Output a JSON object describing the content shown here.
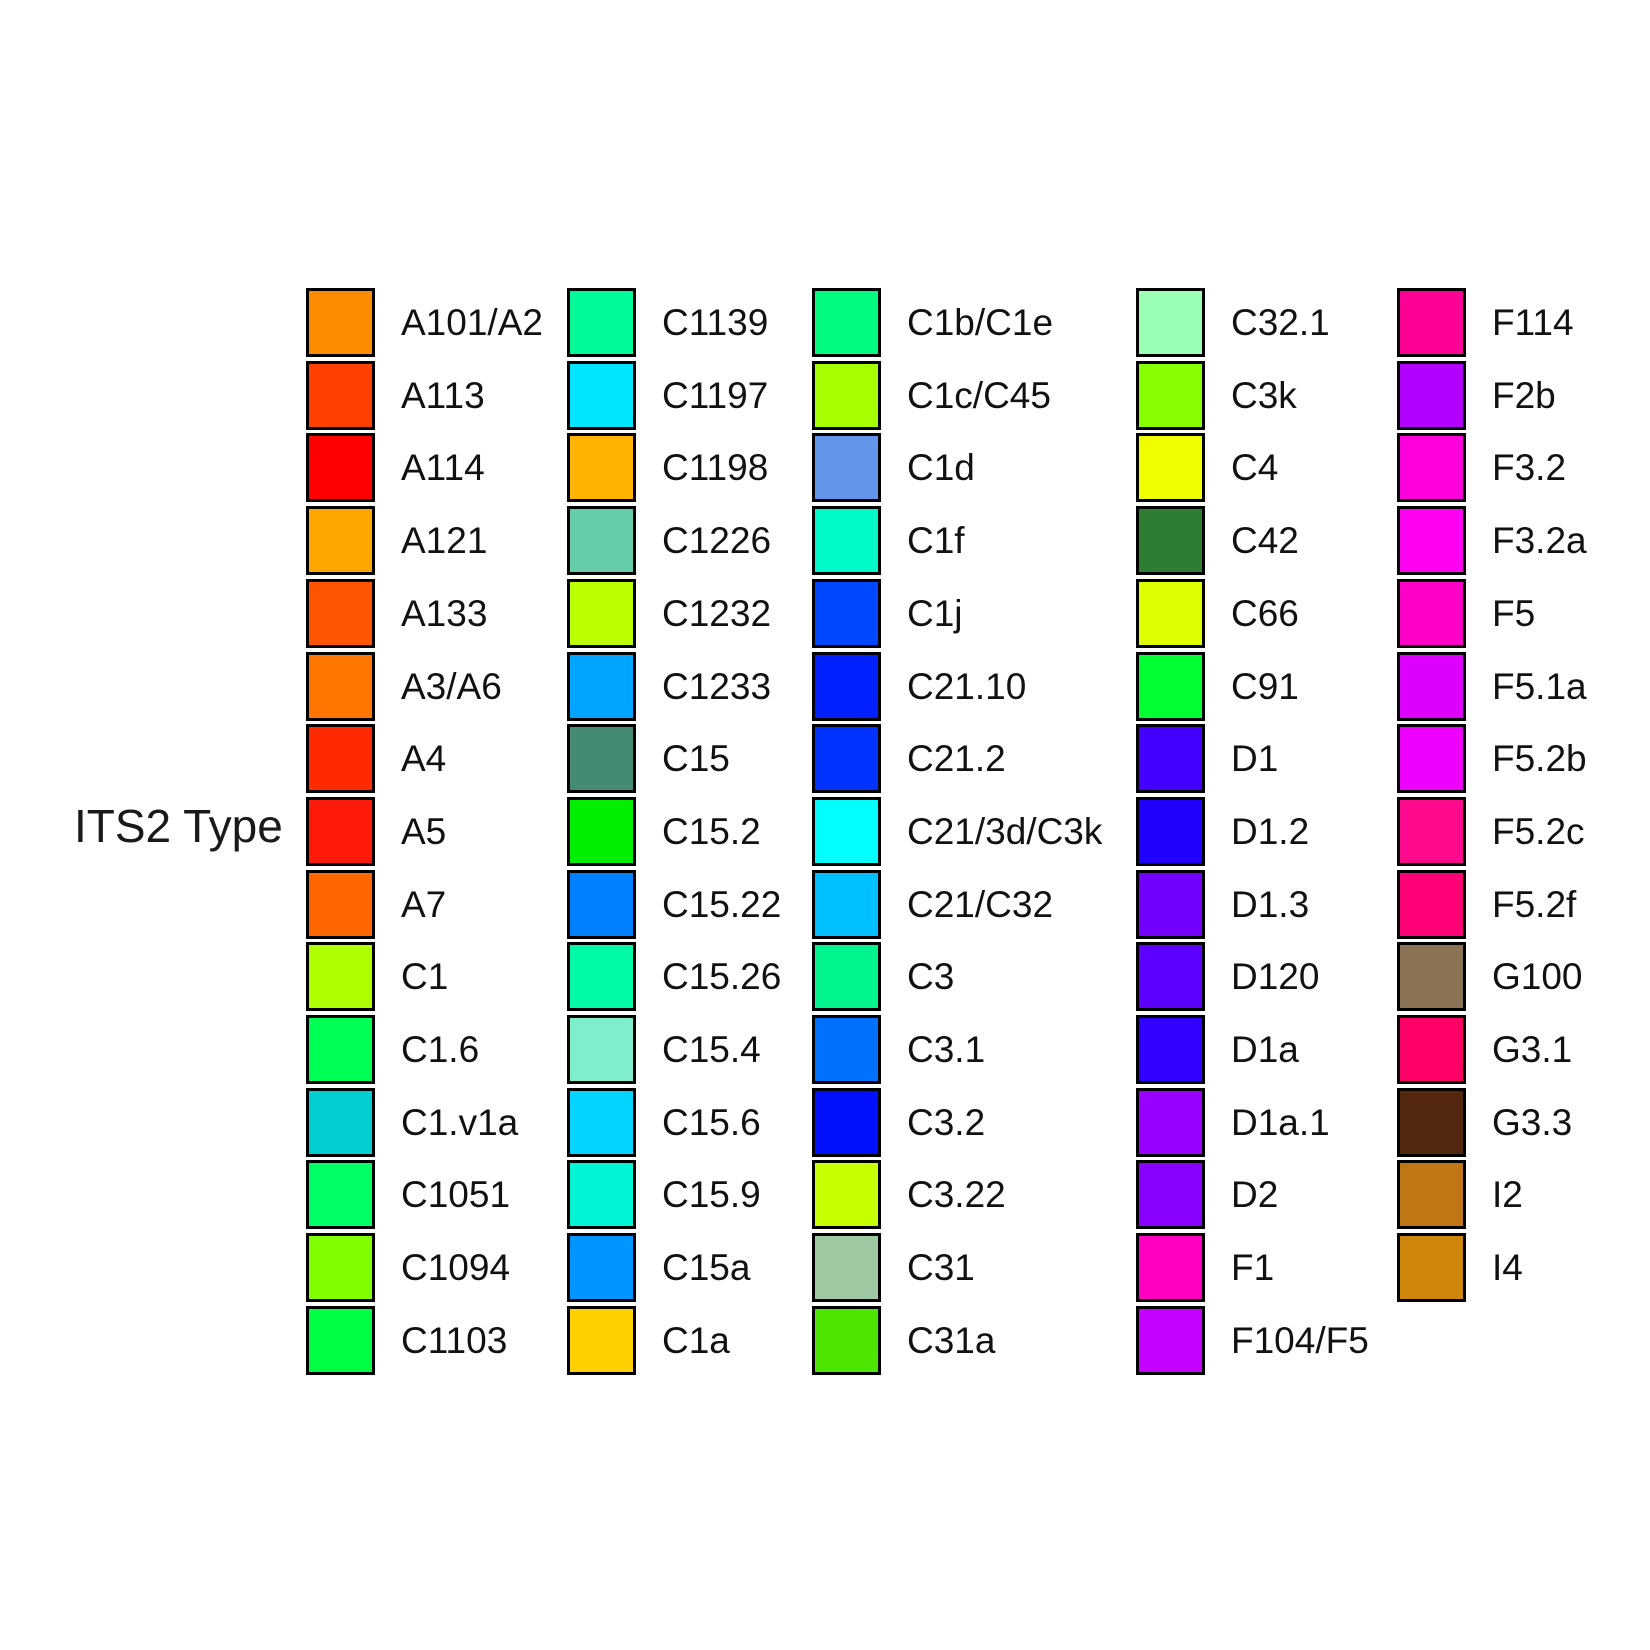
{
  "chart_data": {
    "type": "legend",
    "title": "ITS2 Type",
    "columns": [
      [
        {
          "label": "A101/A2",
          "color": "#FF8C00"
        },
        {
          "label": "A113",
          "color": "#FF4000"
        },
        {
          "label": "A114",
          "color": "#FF0000"
        },
        {
          "label": "A121",
          "color": "#FFA500"
        },
        {
          "label": "A133",
          "color": "#FF5500"
        },
        {
          "label": "A3/A6",
          "color": "#FF7700"
        },
        {
          "label": "A4",
          "color": "#FF2A00"
        },
        {
          "label": "A5",
          "color": "#FF1A0A"
        },
        {
          "label": "A7",
          "color": "#FF6600"
        },
        {
          "label": "C1",
          "color": "#B0FF00"
        },
        {
          "label": "C1.6",
          "color": "#00FF55"
        },
        {
          "label": "C1.v1a",
          "color": "#00CED1"
        },
        {
          "label": "C1051",
          "color": "#00FF66"
        },
        {
          "label": "C1094",
          "color": "#7FFF00"
        },
        {
          "label": "C1103",
          "color": "#00FF44"
        }
      ],
      [
        {
          "label": "C1139",
          "color": "#00FA9A"
        },
        {
          "label": "C1197",
          "color": "#00E5FF"
        },
        {
          "label": "C1198",
          "color": "#FFB300"
        },
        {
          "label": "C1226",
          "color": "#66CDAA"
        },
        {
          "label": "C1232",
          "color": "#BBFF00"
        },
        {
          "label": "C1233",
          "color": "#00A5FF"
        },
        {
          "label": "C15",
          "color": "#458B74"
        },
        {
          "label": "C15.2",
          "color": "#00EE00"
        },
        {
          "label": "C15.22",
          "color": "#0080FF"
        },
        {
          "label": "C15.26",
          "color": "#00FAA8"
        },
        {
          "label": "C15.4",
          "color": "#7FEECC"
        },
        {
          "label": "C15.6",
          "color": "#00D4FF"
        },
        {
          "label": "C15.9",
          "color": "#00F5D4"
        },
        {
          "label": "C15a",
          "color": "#0095FF"
        },
        {
          "label": "C1a",
          "color": "#FFD000"
        }
      ],
      [
        {
          "label": "C1b/C1e",
          "color": "#00FA80"
        },
        {
          "label": "C1c/C45",
          "color": "#A5FF00"
        },
        {
          "label": "C1d",
          "color": "#6495ED"
        },
        {
          "label": "C1f",
          "color": "#00FAC8"
        },
        {
          "label": "C1j",
          "color": "#0048FF"
        },
        {
          "label": "C21.10",
          "color": "#0020FF"
        },
        {
          "label": "C21.2",
          "color": "#0033FF"
        },
        {
          "label": "C21/3d/C3k",
          "color": "#00FFFF"
        },
        {
          "label": "C21/C32",
          "color": "#00BFFF"
        },
        {
          "label": "C3",
          "color": "#00F58F"
        },
        {
          "label": "C3.1",
          "color": "#0070FF"
        },
        {
          "label": "C3.2",
          "color": "#0010FF"
        },
        {
          "label": "C3.22",
          "color": "#C6FF00"
        },
        {
          "label": "C31",
          "color": "#9DC8A1"
        },
        {
          "label": "C31a",
          "color": "#4CE600"
        }
      ],
      [
        {
          "label": "C32.1",
          "color": "#9AFFB4"
        },
        {
          "label": "C3k",
          "color": "#88FF00"
        },
        {
          "label": "C4",
          "color": "#F0FF00"
        },
        {
          "label": "C42",
          "color": "#2E7D32"
        },
        {
          "label": "C66",
          "color": "#DEFF00"
        },
        {
          "label": "C91",
          "color": "#00FF33"
        },
        {
          "label": "D1",
          "color": "#4400FF"
        },
        {
          "label": "D1.2",
          "color": "#2200FF"
        },
        {
          "label": "D1.3",
          "color": "#7300FF"
        },
        {
          "label": "D120",
          "color": "#5C00FF"
        },
        {
          "label": "D1a",
          "color": "#3300FF"
        },
        {
          "label": "D1a.1",
          "color": "#9900FF"
        },
        {
          "label": "D2",
          "color": "#8800FF"
        },
        {
          "label": "F1",
          "color": "#FF00C0"
        },
        {
          "label": "F104/F5",
          "color": "#C400FF"
        }
      ],
      [
        {
          "label": "F114",
          "color": "#FF0095"
        },
        {
          "label": "F2b",
          "color": "#B200FF"
        },
        {
          "label": "F3.2",
          "color": "#FF00DD"
        },
        {
          "label": "F3.2a",
          "color": "#FF00F0"
        },
        {
          "label": "F5",
          "color": "#FF00C8"
        },
        {
          "label": "F5.1a",
          "color": "#DD00FF"
        },
        {
          "label": "F5.2b",
          "color": "#EE00FF"
        },
        {
          "label": "F5.2c",
          "color": "#FF0A8C"
        },
        {
          "label": "F5.2f",
          "color": "#FF0077"
        },
        {
          "label": "G100",
          "color": "#8B7355"
        },
        {
          "label": "G3.1",
          "color": "#FF0066"
        },
        {
          "label": "G3.3",
          "color": "#54280F"
        },
        {
          "label": "I2",
          "color": "#BF7716"
        },
        {
          "label": "I4",
          "color": "#CD850A"
        }
      ]
    ]
  }
}
